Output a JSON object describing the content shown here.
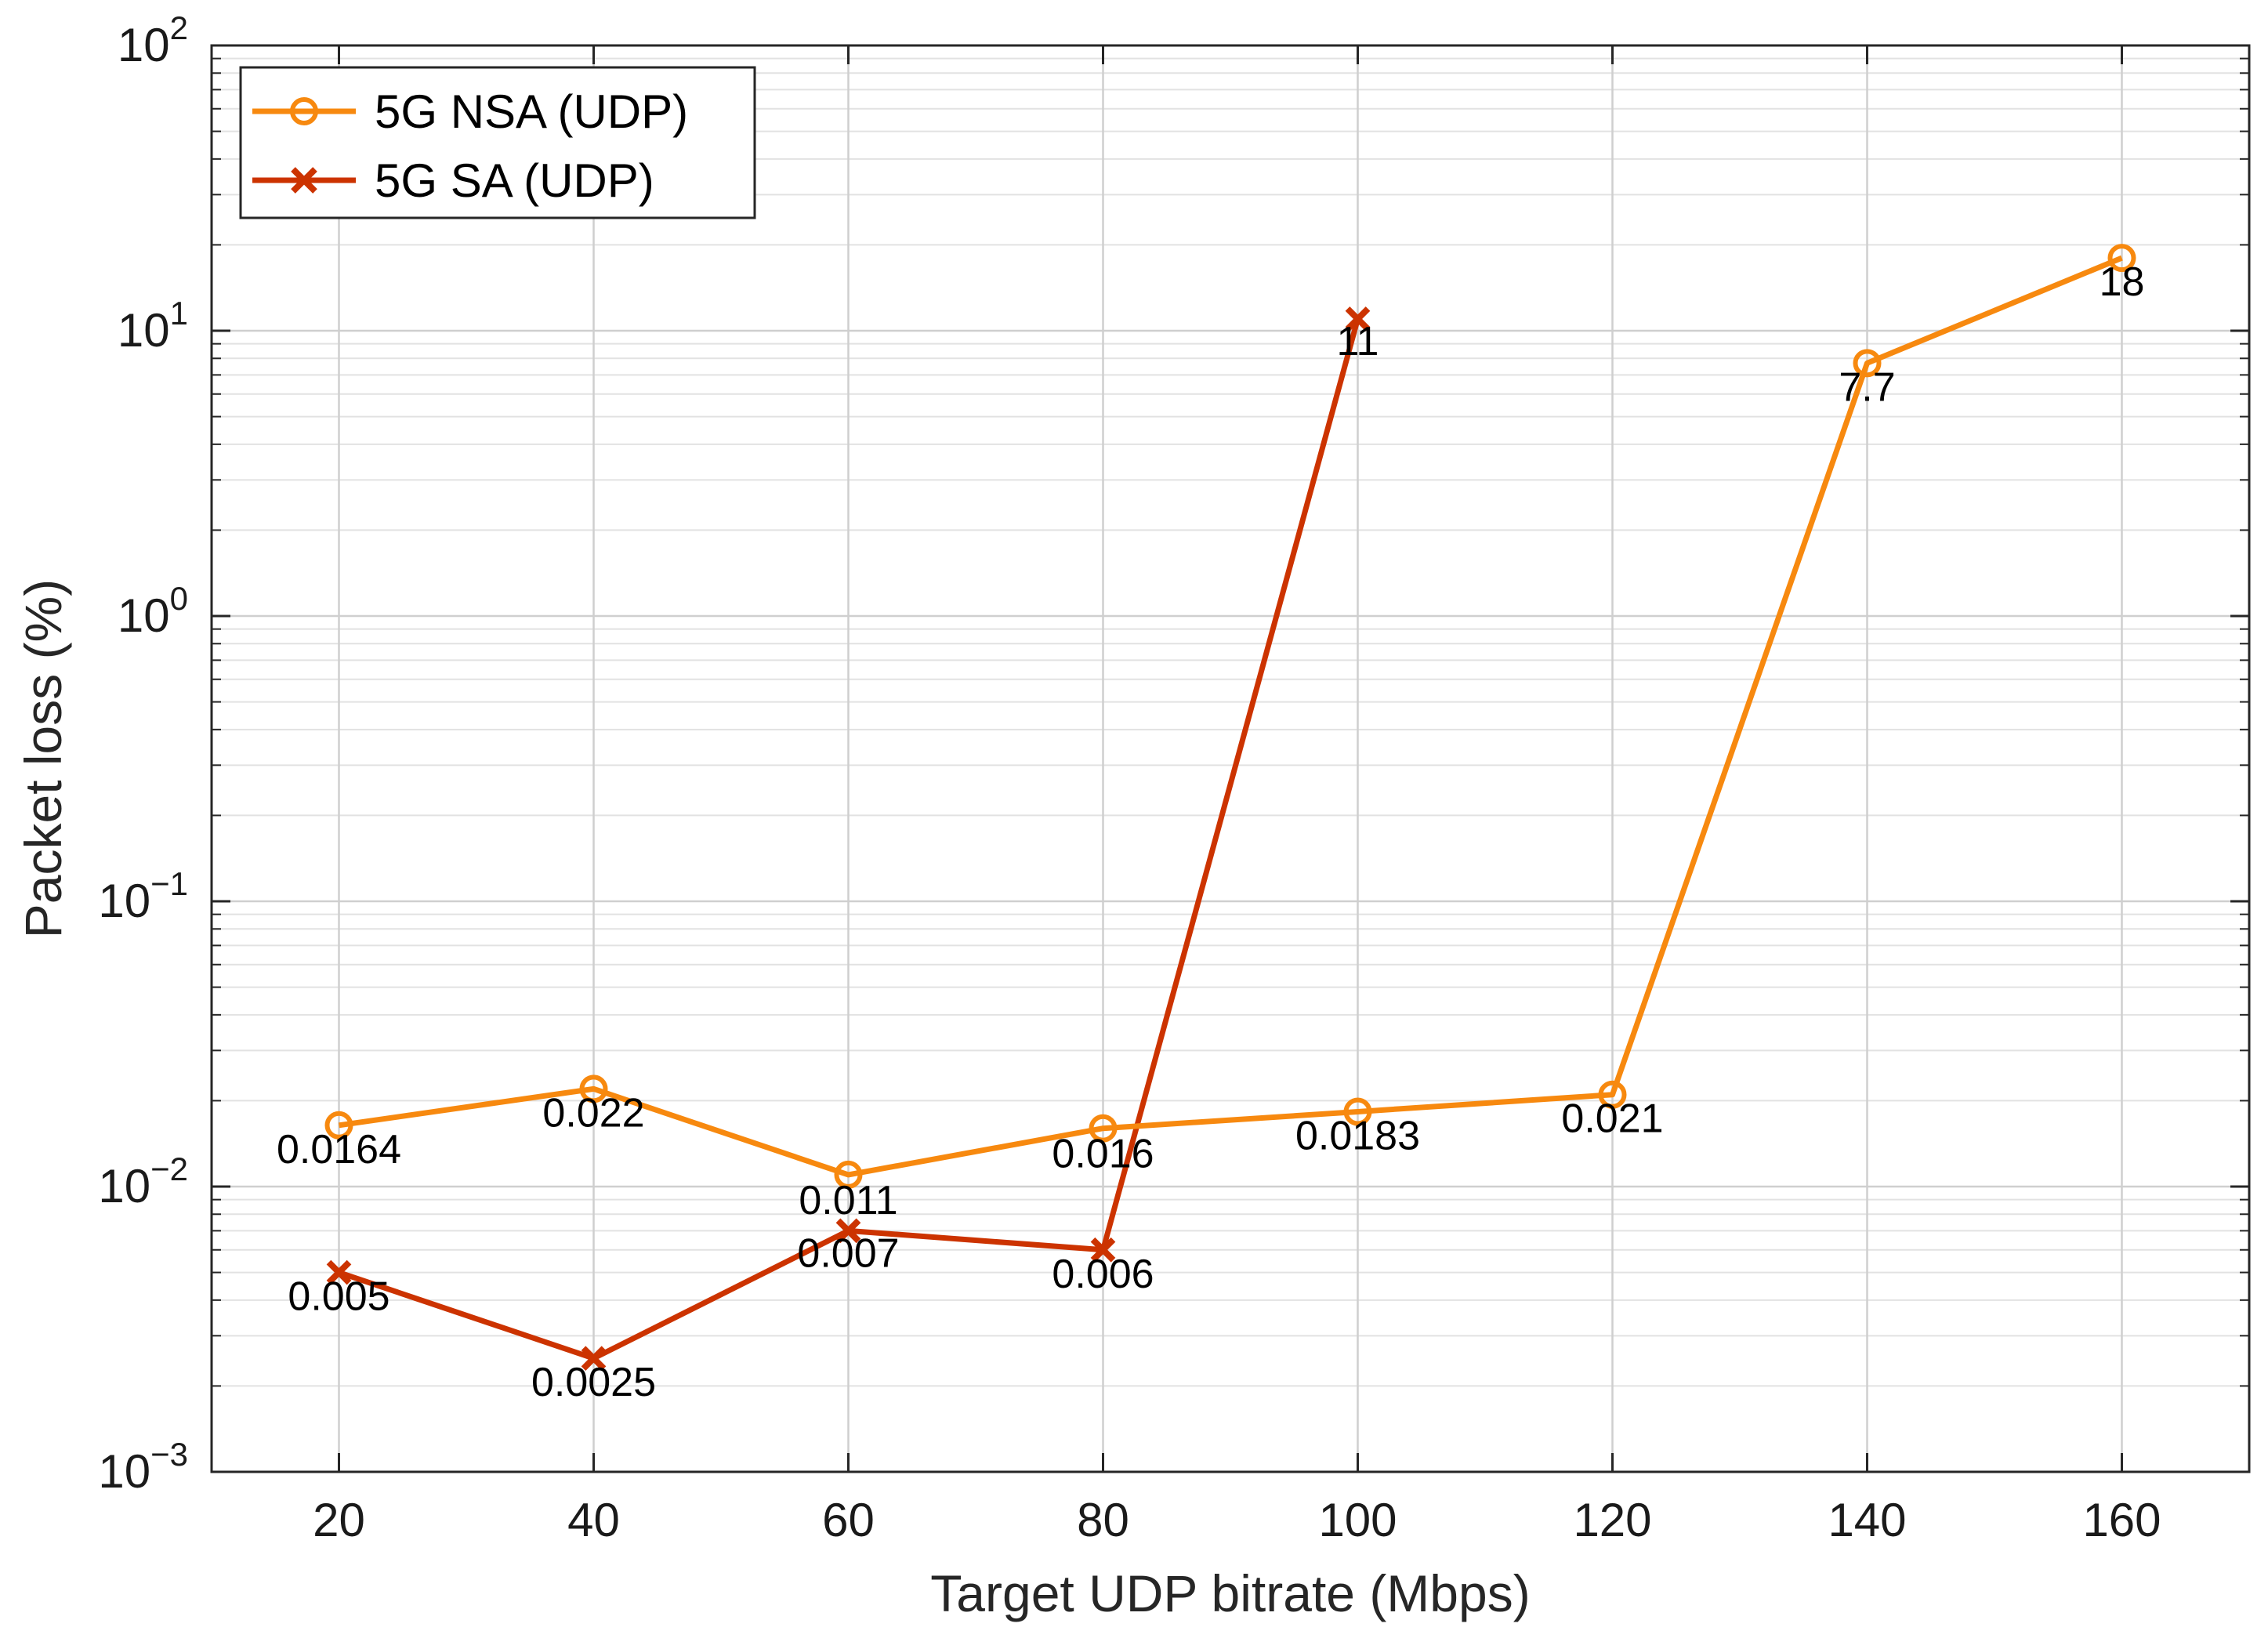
{
  "chart_data": {
    "type": "line",
    "title": "",
    "xlabel": "Target UDP bitrate (Mbps)",
    "ylabel": "Packet loss (%)",
    "yscale": "log",
    "xlim": [
      10,
      170
    ],
    "ylim": [
      0.001,
      100
    ],
    "grid": true,
    "minor_grid": true,
    "legend_position": "top-left",
    "xticks": [
      20,
      40,
      60,
      80,
      100,
      120,
      140,
      160
    ],
    "yticks": [
      {
        "value": 0.001,
        "base": "10",
        "exp": "−3"
      },
      {
        "value": 0.01,
        "base": "10",
        "exp": "−2"
      },
      {
        "value": 0.1,
        "base": "10",
        "exp": "−1"
      },
      {
        "value": 1,
        "base": "10",
        "exp": "0"
      },
      {
        "value": 10,
        "base": "10",
        "exp": "1"
      },
      {
        "value": 100,
        "base": "10",
        "exp": "2"
      }
    ],
    "series": [
      {
        "name": "5G NSA (UDP)",
        "color": "#f7890f",
        "marker": "circle",
        "x": [
          20,
          40,
          60,
          80,
          100,
          120,
          140,
          160
        ],
        "values": [
          0.0164,
          0.022,
          0.011,
          0.016,
          0.0183,
          0.021,
          7.7,
          18
        ],
        "labels": [
          "0.0164",
          "0.022",
          "0.011",
          "0.016",
          "0.0183",
          "0.021",
          "7.7",
          "18"
        ]
      },
      {
        "name": "5G SA (UDP)",
        "color": "#cc3300",
        "marker": "x",
        "x": [
          20,
          40,
          60,
          80,
          100
        ],
        "values": [
          0.005,
          0.0025,
          0.007,
          0.006,
          11
        ],
        "labels": [
          "0.005",
          "0.0025",
          "0.007",
          "0.006",
          "11"
        ]
      }
    ]
  }
}
